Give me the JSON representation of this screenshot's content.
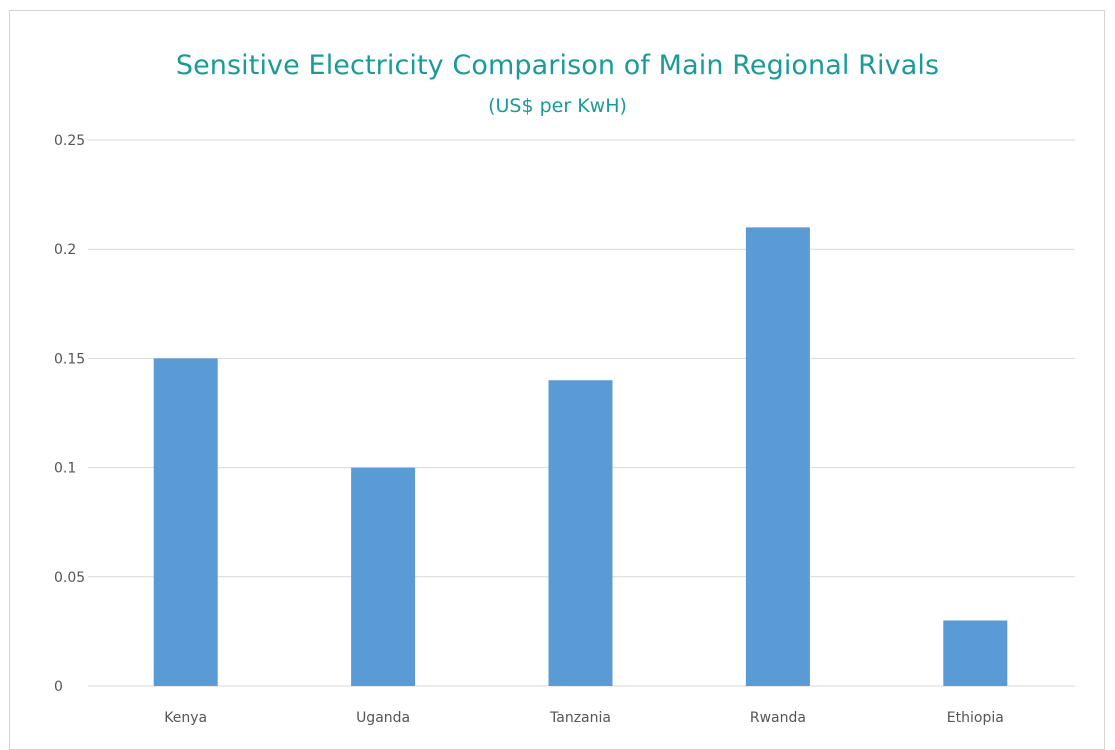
{
  "chart_data": {
    "type": "bar",
    "title": "Sensitive Electricity Comparison of Main Regional Rivals",
    "subtitle": "(US$ per KwH)",
    "categories": [
      "Kenya",
      "Uganda",
      "Tanzania",
      "Rwanda",
      "Ethiopia"
    ],
    "values": [
      0.15,
      0.1,
      0.14,
      0.21,
      0.03
    ],
    "ylim": [
      0,
      0.25
    ],
    "yticks": [
      0,
      0.05,
      0.1,
      0.15,
      0.2,
      0.25
    ],
    "ytick_labels": [
      "0",
      "0.05",
      "0.1",
      "0.15",
      "0.2",
      "0.25"
    ],
    "xlabel": "",
    "ylabel": "",
    "grid": true,
    "legend": "none",
    "bar_color": "#5b9bd5",
    "gridline_color": "#d9d9d9",
    "title_color": "#1a9b9a"
  }
}
